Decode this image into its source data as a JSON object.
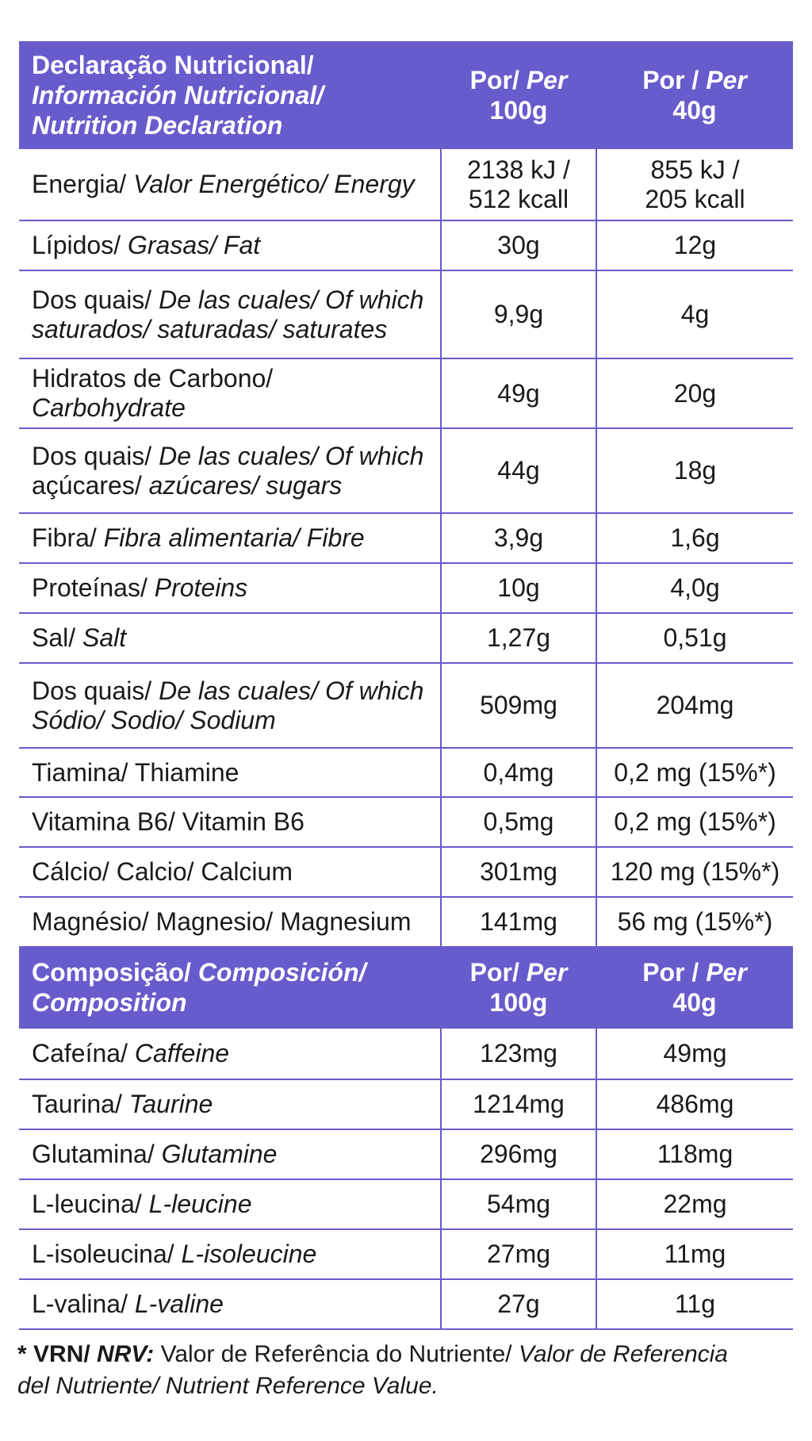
{
  "header_nutrition": {
    "label": [
      "Declaração Nutricional/",
      "Información Nutricional/",
      "Nutrition Declaration"
    ],
    "col1": {
      "por": "Por/ ",
      "per": "Per",
      "amount": "100g"
    },
    "col2": {
      "por": "Por / ",
      "per": "Per",
      "amount": "40g"
    }
  },
  "nutrition_rows": [
    {
      "pt": "Energia/ ",
      "es_en": "Valor Energético/ Energy",
      "v100": [
        "2138 kJ /",
        "512 kcall"
      ],
      "v40": [
        "855 kJ /",
        "205 kcall"
      ]
    },
    {
      "pt": "Lípidos/ ",
      "es_en": "Grasas/ Fat",
      "v100": [
        "30g"
      ],
      "v40": [
        "12g"
      ]
    },
    {
      "pt": "Dos quais/ ",
      "es_en": "De las cuales/ Of which",
      "pt2": "saturados/ saturadas/ saturates",
      "v100": [
        "9,9g"
      ],
      "v40": [
        "4g"
      ]
    },
    {
      "pt": "Hidratos de Carbono/ ",
      "es_en": "Carbohydrate",
      "v100": [
        "49g"
      ],
      "v40": [
        "20g"
      ]
    },
    {
      "pt": "Dos quais/ ",
      "es_en": "De las cuales/ Of which",
      "pt2a": "açúcares/ ",
      "pt2b": "azúcares/ sugars",
      "v100": [
        "44g"
      ],
      "v40": [
        "18g"
      ]
    },
    {
      "pt": "Fibra/ ",
      "es_en": "Fibra alimentaria/ Fibre",
      "v100": [
        "3,9g"
      ],
      "v40": [
        "1,6g"
      ]
    },
    {
      "pt": "Proteínas/ ",
      "es_en": "Proteins",
      "v100": [
        "10g"
      ],
      "v40": [
        "4,0g"
      ]
    },
    {
      "pt": "Sal/ ",
      "es_en": "Salt",
      "v100": [
        "1,27g"
      ],
      "v40": [
        "0,51g"
      ]
    },
    {
      "pt": "Dos quais/ ",
      "es_en": "De las cuales/ Of which",
      "pt2": "Sódio/ Sodio/ Sodium",
      "v100": [
        "509mg"
      ],
      "v40": [
        "204mg"
      ]
    },
    {
      "pt": "Tiamina/ Thiamine",
      "es_en": "",
      "v100": [
        "0,4mg"
      ],
      "v40": [
        "0,2 mg (15%*)"
      ]
    },
    {
      "pt": "Vitamina B6/ Vitamin B6",
      "es_en": "",
      "v100": [
        "0,5mg"
      ],
      "v40": [
        "0,2 mg (15%*)"
      ]
    },
    {
      "pt": "Cálcio/ Calcio/ Calcium",
      "es_en": "",
      "v100": [
        "301mg"
      ],
      "v40": [
        "120 mg (15%*)"
      ]
    },
    {
      "pt": "Magnésio/ Magnesio/ Magnesium",
      "es_en": "",
      "v100": [
        "141mg"
      ],
      "v40": [
        "56 mg (15%*)"
      ]
    }
  ],
  "header_composition": {
    "label_a": "Composição/ ",
    "label_b": "Composición/",
    "label_c": "Composition",
    "col1": {
      "por": "Por/ ",
      "per": "Per",
      "amount": "100g"
    },
    "col2": {
      "por": "Por / ",
      "per": "Per",
      "amount": "40g"
    }
  },
  "composition_rows": [
    {
      "pt": "Cafeína/ ",
      "en": "Caffeine",
      "v100": "123mg",
      "v40": "49mg"
    },
    {
      "pt": "Taurina/ ",
      "en": "Taurine",
      "v100": "1214mg",
      "v40": "486mg"
    },
    {
      "pt": "Glutamina/ ",
      "en": "Glutamine",
      "v100": "296mg",
      "v40": "118mg"
    },
    {
      "pt": "L-leucina/ ",
      "en": "L-leucine",
      "v100": "54mg",
      "v40": "22mg"
    },
    {
      "pt": "L-isoleucina/ ",
      "en": "L-isoleucine",
      "v100": "27mg",
      "v40": "11mg"
    },
    {
      "pt": "L-valina/ ",
      "en": "L-valine",
      "v100": "27g",
      "v40": "11g"
    }
  ],
  "footnote": {
    "star": "* ",
    "vrn": "VRN/ ",
    "nrv": "NRV:",
    "pt": " Valor de Referência do Nutriente/ ",
    "es": "Valor de Referencia",
    "es2": " del Nutriente/ Nutrient Reference Value."
  },
  "colors": {
    "accent": "#675ccc",
    "header_text": "#ffffff"
  }
}
